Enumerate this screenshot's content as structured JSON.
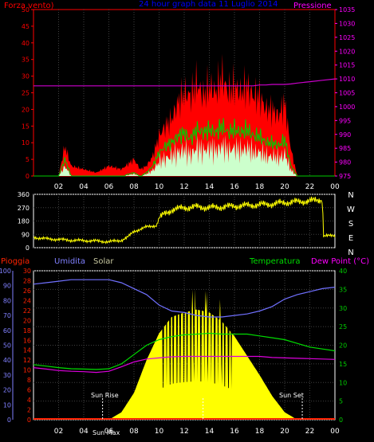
{
  "colors": {
    "background": "#000000",
    "wind_axis": "#ff0000",
    "pressure_axis": "#ff00ff",
    "title": "#0000ff",
    "gust": "#ff0000",
    "wind_avg": "#00cc00",
    "wind_fill": "#ccffcc",
    "pressure_line": "#cc00cc",
    "direction_line": "#ffff00",
    "grid": "#404040",
    "rain": "#ff2200",
    "humidity": "#7070ff",
    "solar": "#ffff00",
    "temperature": "#00dd00",
    "dewpoint": "#dd00dd",
    "sun_marker": "#ffffff",
    "right_axis": "#00cc00",
    "hum_axis": "#8080ff",
    "text": "#ffffff"
  },
  "header": {
    "left_label": "Forza vento)",
    "title": "24 hour graph data 11 Luglio 2014",
    "right_label": "Pressione"
  },
  "dirs": [
    "N",
    "W",
    "S",
    "E",
    "N"
  ],
  "footer_labels": {
    "pioggia": "Pioggia",
    "umidita": "Umidita",
    "solar": "Solar",
    "temperatura": "Temperatura",
    "dewpoint": "Dew Point (°C)",
    "sunrise": "Sun Rise",
    "sunset": "Sun Set",
    "sunmax": "Sun Max"
  },
  "chart_data": [
    {
      "type": "area",
      "name": "wind_pressure",
      "x_ticks": [
        "02",
        "04",
        "06",
        "08",
        "10",
        "12",
        "14",
        "16",
        "18",
        "20",
        "22",
        "00"
      ],
      "y_left": {
        "label": "Forza vento)",
        "ticks": [
          0,
          5,
          10,
          15,
          20,
          25,
          30,
          35,
          40,
          45,
          50
        ],
        "lim": [
          0,
          50
        ]
      },
      "y_right": {
        "label": "Pressione",
        "ticks": [
          975,
          980,
          985,
          990,
          995,
          1000,
          1005,
          1010,
          1015,
          1020,
          1025,
          1030,
          1035
        ],
        "lim": [
          975,
          1035
        ]
      },
      "hours": [
        0,
        1,
        2,
        2.5,
        3,
        4,
        5,
        6,
        7,
        8,
        8.5,
        9,
        9.5,
        10,
        10.5,
        11,
        11.5,
        12,
        12.5,
        13,
        13.5,
        14,
        14.5,
        15,
        15.5,
        16,
        16.5,
        17,
        17.5,
        18,
        18.5,
        19,
        19.5,
        20,
        20.5,
        21,
        22,
        23,
        24
      ],
      "gust": [
        0,
        0,
        0,
        9,
        3,
        2,
        1,
        3,
        2,
        5,
        2,
        3,
        6,
        12,
        15,
        17,
        22,
        25,
        24,
        28,
        24,
        27,
        25,
        30,
        25,
        27,
        25,
        27,
        24,
        24,
        20,
        20,
        18,
        22,
        8,
        0,
        0,
        0,
        0
      ],
      "wind_avg": [
        0,
        0,
        0,
        5,
        0,
        0,
        0,
        0,
        0,
        1,
        0,
        1,
        3,
        7,
        9,
        10,
        12,
        13,
        11,
        14,
        13,
        14,
        13,
        15,
        13,
        14,
        13,
        14,
        12,
        12,
        10,
        10,
        9,
        11,
        3,
        0,
        0,
        0,
        0
      ],
      "pressure": [
        1007.5,
        1007.5,
        1007.5,
        1007.5,
        1007.5,
        1007.5,
        1007.5,
        1007.5,
        1007.5,
        1007.5,
        1007.5,
        1007.5,
        1007.5,
        1007.5,
        1007.5,
        1007.5,
        1007.5,
        1007.5,
        1007.5,
        1007.5,
        1007.5,
        1007.5,
        1007.5,
        1007.5,
        1007.5,
        1007.5,
        1007.5,
        1007.5,
        1007.5,
        1007.8,
        1007.8,
        1008,
        1008,
        1008,
        1008.2,
        1008.5,
        1009,
        1009.5,
        1010
      ]
    },
    {
      "type": "line",
      "name": "wind_direction",
      "x_ticks": [
        "02",
        "04",
        "06",
        "08",
        "10",
        "12",
        "14",
        "16",
        "18",
        "20",
        "22",
        "00"
      ],
      "y_ticks": [
        0,
        90,
        180,
        270,
        360
      ],
      "ylim": [
        0,
        360
      ],
      "hours": [
        0,
        1,
        2,
        3,
        4,
        5,
        6,
        7,
        7.5,
        8,
        9,
        9.8,
        10,
        10.5,
        11,
        12,
        13,
        14,
        15,
        16,
        17,
        18,
        19,
        20,
        21,
        22,
        23,
        23.1,
        24
      ],
      "degrees": [
        70,
        60,
        55,
        50,
        48,
        45,
        40,
        50,
        70,
        110,
        140,
        150,
        200,
        230,
        255,
        270,
        275,
        270,
        275,
        280,
        285,
        290,
        295,
        305,
        310,
        315,
        325,
        80,
        80
      ]
    },
    {
      "type": "line",
      "name": "temperature_humidity_solar",
      "x_ticks": [
        "02",
        "04",
        "06",
        "08",
        "10",
        "12",
        "14",
        "16",
        "18",
        "20",
        "22",
        "00"
      ],
      "y_far_left": {
        "label": "Umidita",
        "ticks": [
          0,
          10,
          20,
          30,
          40,
          50,
          60,
          70,
          80,
          90,
          100
        ],
        "lim": [
          0,
          100
        ]
      },
      "y_left": {
        "label": "Pioggia",
        "ticks": [
          0,
          2,
          4,
          6,
          8,
          10,
          12,
          14,
          16,
          18,
          20,
          22,
          24,
          26,
          28,
          30
        ],
        "lim": [
          0,
          30
        ]
      },
      "y_right": {
        "label": "Dew Point (°C)",
        "ticks": [
          0,
          5,
          10,
          15,
          20,
          25,
          30,
          35,
          40
        ],
        "lim": [
          0,
          40
        ]
      },
      "hours": [
        0,
        1,
        2,
        3,
        4,
        5,
        6,
        7,
        8,
        9,
        10,
        11,
        12,
        13,
        14,
        15,
        16,
        17,
        18,
        19,
        20,
        21,
        22,
        23,
        24
      ],
      "humidity": [
        91,
        92,
        93,
        94,
        94,
        94,
        94,
        92,
        88,
        84,
        77,
        73,
        72,
        70,
        69,
        69,
        70,
        71,
        73,
        76,
        81,
        84,
        86,
        88,
        89
      ],
      "temperature": [
        14.8,
        14.4,
        14.0,
        13.7,
        13.6,
        13.5,
        13.7,
        15.0,
        17.5,
        20.0,
        21.5,
        22.3,
        22.8,
        23.0,
        23.2,
        23.0,
        23.0,
        23.0,
        22.5,
        22.0,
        21.5,
        20.5,
        19.5,
        19.0,
        18.5
      ],
      "dewpoint": [
        14.0,
        13.6,
        13.2,
        13.0,
        12.9,
        12.7,
        13.0,
        14.2,
        15.5,
        16.3,
        16.6,
        16.9,
        17.0,
        17.0,
        17.0,
        17.0,
        17.0,
        17.0,
        17.0,
        16.7,
        16.6,
        16.5,
        16.4,
        16.3,
        16.2
      ],
      "solar_pct": [
        0,
        0,
        0,
        0,
        0,
        0,
        0,
        5,
        18,
        40,
        58,
        69,
        72,
        74,
        72,
        66,
        56,
        43,
        30,
        16,
        5,
        0,
        0,
        0,
        0
      ],
      "rain": [
        0,
        0,
        0,
        0,
        0,
        0,
        0,
        0,
        0,
        0,
        0,
        0,
        0,
        0,
        0,
        0,
        0,
        0,
        0,
        0,
        0,
        0,
        0,
        0,
        0
      ],
      "sunrise_hour": 5.5,
      "sunmax_hour": 13.5,
      "sunset_hour": 21.4
    }
  ]
}
